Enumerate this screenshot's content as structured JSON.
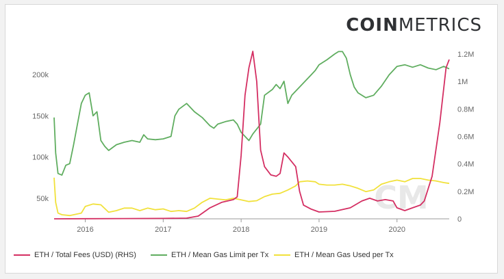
{
  "brand": {
    "bold": "COIN",
    "light": "METRICS"
  },
  "colors": {
    "fees": "#d42e62",
    "gas_limit": "#5fad5f",
    "gas_used": "#f1e13a",
    "axis": "#666666"
  },
  "chart_data": {
    "type": "line",
    "title": "",
    "xlabel": "",
    "xlim": [
      2015.6,
      2020.67
    ],
    "x_ticks": [
      2016,
      2017,
      2018,
      2019,
      2020
    ],
    "x_tick_labels": [
      "2016",
      "2017",
      "2018",
      "2019",
      "2020"
    ],
    "left_axis": {
      "ylim": [
        25000,
        235000
      ],
      "ticks": [
        50000,
        100000,
        150000,
        200000
      ],
      "tick_labels": [
        "50k",
        "100k",
        "150k",
        "200k"
      ]
    },
    "right_axis": {
      "ylim": [
        0,
        1260000
      ],
      "ticks": [
        0,
        200000,
        400000,
        600000,
        800000,
        1000000,
        1200000
      ],
      "tick_labels": [
        "0",
        "0.2M",
        "0.4M",
        "0.6M",
        "0.8M",
        "1M",
        "1.2M"
      ]
    },
    "legend_position": "bottom",
    "series": [
      {
        "name": "ETH / Total Fees (USD) (RHS)",
        "axis": "right",
        "color_key": "fees",
        "points": [
          [
            2015.6,
            0
          ],
          [
            2016.0,
            1000
          ],
          [
            2016.5,
            2000
          ],
          [
            2017.0,
            3000
          ],
          [
            2017.3,
            5000
          ],
          [
            2017.45,
            20000
          ],
          [
            2017.6,
            80000
          ],
          [
            2017.75,
            120000
          ],
          [
            2017.9,
            140000
          ],
          [
            2017.95,
            160000
          ],
          [
            2018.0,
            460000
          ],
          [
            2018.05,
            900000
          ],
          [
            2018.1,
            1100000
          ],
          [
            2018.15,
            1220000
          ],
          [
            2018.2,
            1000000
          ],
          [
            2018.25,
            500000
          ],
          [
            2018.3,
            380000
          ],
          [
            2018.38,
            320000
          ],
          [
            2018.45,
            310000
          ],
          [
            2018.5,
            330000
          ],
          [
            2018.55,
            480000
          ],
          [
            2018.6,
            450000
          ],
          [
            2018.7,
            380000
          ],
          [
            2018.75,
            200000
          ],
          [
            2018.8,
            100000
          ],
          [
            2018.9,
            70000
          ],
          [
            2019.0,
            50000
          ],
          [
            2019.2,
            55000
          ],
          [
            2019.4,
            80000
          ],
          [
            2019.55,
            130000
          ],
          [
            2019.65,
            150000
          ],
          [
            2019.75,
            130000
          ],
          [
            2019.85,
            140000
          ],
          [
            2019.95,
            130000
          ],
          [
            2020.0,
            80000
          ],
          [
            2020.1,
            60000
          ],
          [
            2020.2,
            80000
          ],
          [
            2020.3,
            100000
          ],
          [
            2020.35,
            130000
          ],
          [
            2020.45,
            310000
          ],
          [
            2020.55,
            700000
          ],
          [
            2020.63,
            1100000
          ],
          [
            2020.67,
            1160000
          ]
        ]
      },
      {
        "name": "ETH / Mean Gas Limit per Tx",
        "axis": "left",
        "color_key": "gas_limit",
        "points": [
          [
            2015.6,
            148000
          ],
          [
            2015.62,
            105000
          ],
          [
            2015.65,
            80000
          ],
          [
            2015.7,
            78000
          ],
          [
            2015.75,
            90000
          ],
          [
            2015.8,
            92000
          ],
          [
            2015.85,
            115000
          ],
          [
            2015.9,
            140000
          ],
          [
            2015.95,
            165000
          ],
          [
            2016.0,
            175000
          ],
          [
            2016.05,
            178000
          ],
          [
            2016.1,
            150000
          ],
          [
            2016.15,
            155000
          ],
          [
            2016.2,
            120000
          ],
          [
            2016.25,
            113000
          ],
          [
            2016.3,
            108000
          ],
          [
            2016.4,
            115000
          ],
          [
            2016.5,
            118000
          ],
          [
            2016.6,
            120000
          ],
          [
            2016.7,
            118000
          ],
          [
            2016.75,
            127000
          ],
          [
            2016.8,
            122000
          ],
          [
            2016.9,
            121000
          ],
          [
            2017.0,
            122000
          ],
          [
            2017.1,
            125000
          ],
          [
            2017.15,
            150000
          ],
          [
            2017.2,
            158000
          ],
          [
            2017.3,
            165000
          ],
          [
            2017.4,
            155000
          ],
          [
            2017.5,
            148000
          ],
          [
            2017.6,
            138000
          ],
          [
            2017.65,
            135000
          ],
          [
            2017.7,
            140000
          ],
          [
            2017.8,
            143000
          ],
          [
            2017.9,
            145000
          ],
          [
            2017.95,
            140000
          ],
          [
            2018.0,
            130000
          ],
          [
            2018.05,
            125000
          ],
          [
            2018.1,
            120000
          ],
          [
            2018.15,
            128000
          ],
          [
            2018.25,
            140000
          ],
          [
            2018.3,
            175000
          ],
          [
            2018.4,
            182000
          ],
          [
            2018.45,
            188000
          ],
          [
            2018.5,
            183000
          ],
          [
            2018.55,
            192000
          ],
          [
            2018.6,
            165000
          ],
          [
            2018.65,
            175000
          ],
          [
            2018.7,
            180000
          ],
          [
            2018.8,
            190000
          ],
          [
            2018.9,
            200000
          ],
          [
            2018.95,
            205000
          ],
          [
            2019.0,
            212000
          ],
          [
            2019.1,
            218000
          ],
          [
            2019.2,
            225000
          ],
          [
            2019.25,
            228000
          ],
          [
            2019.3,
            228000
          ],
          [
            2019.35,
            220000
          ],
          [
            2019.4,
            200000
          ],
          [
            2019.45,
            185000
          ],
          [
            2019.5,
            178000
          ],
          [
            2019.6,
            172000
          ],
          [
            2019.7,
            175000
          ],
          [
            2019.8,
            186000
          ],
          [
            2019.9,
            200000
          ],
          [
            2020.0,
            210000
          ],
          [
            2020.1,
            212000
          ],
          [
            2020.2,
            209000
          ],
          [
            2020.3,
            212000
          ],
          [
            2020.4,
            208000
          ],
          [
            2020.5,
            206000
          ],
          [
            2020.6,
            210000
          ],
          [
            2020.67,
            207000
          ]
        ]
      },
      {
        "name": "ETH / Mean Gas Used per Tx",
        "axis": "left",
        "color_key": "gas_used",
        "points": [
          [
            2015.6,
            75000
          ],
          [
            2015.62,
            45000
          ],
          [
            2015.65,
            32000
          ],
          [
            2015.7,
            30000
          ],
          [
            2015.8,
            29000
          ],
          [
            2015.95,
            32000
          ],
          [
            2016.0,
            40000
          ],
          [
            2016.1,
            43000
          ],
          [
            2016.2,
            42000
          ],
          [
            2016.3,
            33000
          ],
          [
            2016.4,
            35000
          ],
          [
            2016.5,
            38000
          ],
          [
            2016.6,
            38000
          ],
          [
            2016.7,
            35000
          ],
          [
            2016.8,
            38000
          ],
          [
            2016.9,
            36000
          ],
          [
            2017.0,
            37000
          ],
          [
            2017.1,
            34000
          ],
          [
            2017.2,
            35000
          ],
          [
            2017.3,
            34000
          ],
          [
            2017.4,
            38000
          ],
          [
            2017.5,
            45000
          ],
          [
            2017.6,
            50000
          ],
          [
            2017.7,
            49000
          ],
          [
            2017.8,
            48000
          ],
          [
            2017.9,
            50000
          ],
          [
            2018.0,
            48000
          ],
          [
            2018.1,
            46000
          ],
          [
            2018.2,
            47000
          ],
          [
            2018.3,
            52000
          ],
          [
            2018.4,
            55000
          ],
          [
            2018.5,
            56000
          ],
          [
            2018.6,
            60000
          ],
          [
            2018.7,
            65000
          ],
          [
            2018.75,
            70000
          ],
          [
            2018.85,
            71000
          ],
          [
            2018.95,
            70000
          ],
          [
            2019.0,
            67000
          ],
          [
            2019.1,
            66000
          ],
          [
            2019.2,
            66000
          ],
          [
            2019.3,
            67000
          ],
          [
            2019.4,
            65000
          ],
          [
            2019.5,
            62000
          ],
          [
            2019.6,
            58000
          ],
          [
            2019.7,
            60000
          ],
          [
            2019.8,
            67000
          ],
          [
            2019.9,
            70000
          ],
          [
            2020.0,
            72000
          ],
          [
            2020.1,
            70000
          ],
          [
            2020.2,
            74000
          ],
          [
            2020.3,
            74000
          ],
          [
            2020.4,
            72000
          ],
          [
            2020.5,
            71000
          ],
          [
            2020.6,
            69000
          ],
          [
            2020.67,
            68000
          ]
        ]
      }
    ]
  }
}
